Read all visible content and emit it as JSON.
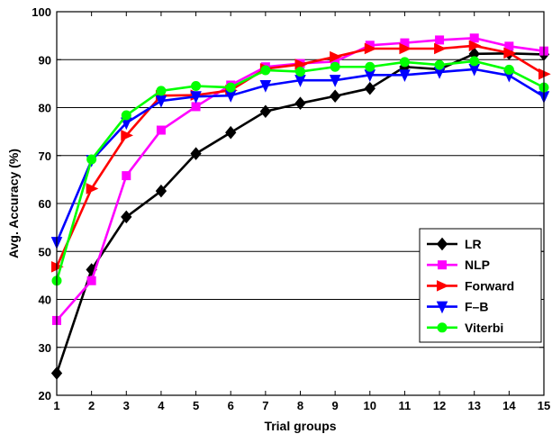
{
  "chart_data": {
    "type": "line",
    "title": "",
    "xlabel": "Trial groups",
    "ylabel": "Avg. Accuracy (%)",
    "xlim": [
      1,
      15
    ],
    "ylim": [
      20,
      100
    ],
    "x_ticks": [
      1,
      2,
      3,
      4,
      5,
      6,
      7,
      8,
      9,
      10,
      11,
      12,
      13,
      14,
      15
    ],
    "y_ticks": [
      20,
      30,
      40,
      50,
      60,
      70,
      80,
      90,
      100
    ],
    "grid": "horizontal",
    "legend_position": "right",
    "x": [
      1,
      2,
      3,
      4,
      5,
      6,
      7,
      8,
      9,
      10,
      11,
      12,
      13,
      14,
      15
    ],
    "series": [
      {
        "name": "LR",
        "color": "#000000",
        "marker": "diamond",
        "values": [
          24.6,
          46.2,
          57.2,
          62.6,
          70.4,
          74.8,
          79.2,
          80.9,
          82.4,
          84.0,
          88.5,
          88.0,
          91.2,
          91.3,
          91.1
        ]
      },
      {
        "name": "NLP",
        "color": "#ff00ff",
        "marker": "square",
        "values": [
          35.6,
          43.9,
          65.8,
          75.3,
          80.2,
          84.7,
          88.5,
          89.2,
          89.6,
          93.0,
          93.5,
          94.1,
          94.5,
          92.8,
          91.8
        ]
      },
      {
        "name": "Forward",
        "color": "#ff0000",
        "marker": "triangle-right",
        "values": [
          46.8,
          63.1,
          74.2,
          82.5,
          82.6,
          83.6,
          88.1,
          89.0,
          90.6,
          92.3,
          92.3,
          92.3,
          92.9,
          91.4,
          87.0
        ]
      },
      {
        "name": "F–B",
        "color": "#0000ff",
        "marker": "triangle-down",
        "values": [
          51.9,
          69.0,
          76.8,
          81.4,
          82.3,
          82.5,
          84.6,
          85.7,
          85.7,
          86.8,
          86.8,
          87.4,
          88.0,
          86.7,
          82.3
        ]
      },
      {
        "name": "Viterbi",
        "color": "#00ff00",
        "marker": "circle",
        "values": [
          43.9,
          69.2,
          78.4,
          83.5,
          84.5,
          84.2,
          87.8,
          87.5,
          88.5,
          88.5,
          89.5,
          88.9,
          89.7,
          87.9,
          84.2
        ]
      }
    ]
  }
}
